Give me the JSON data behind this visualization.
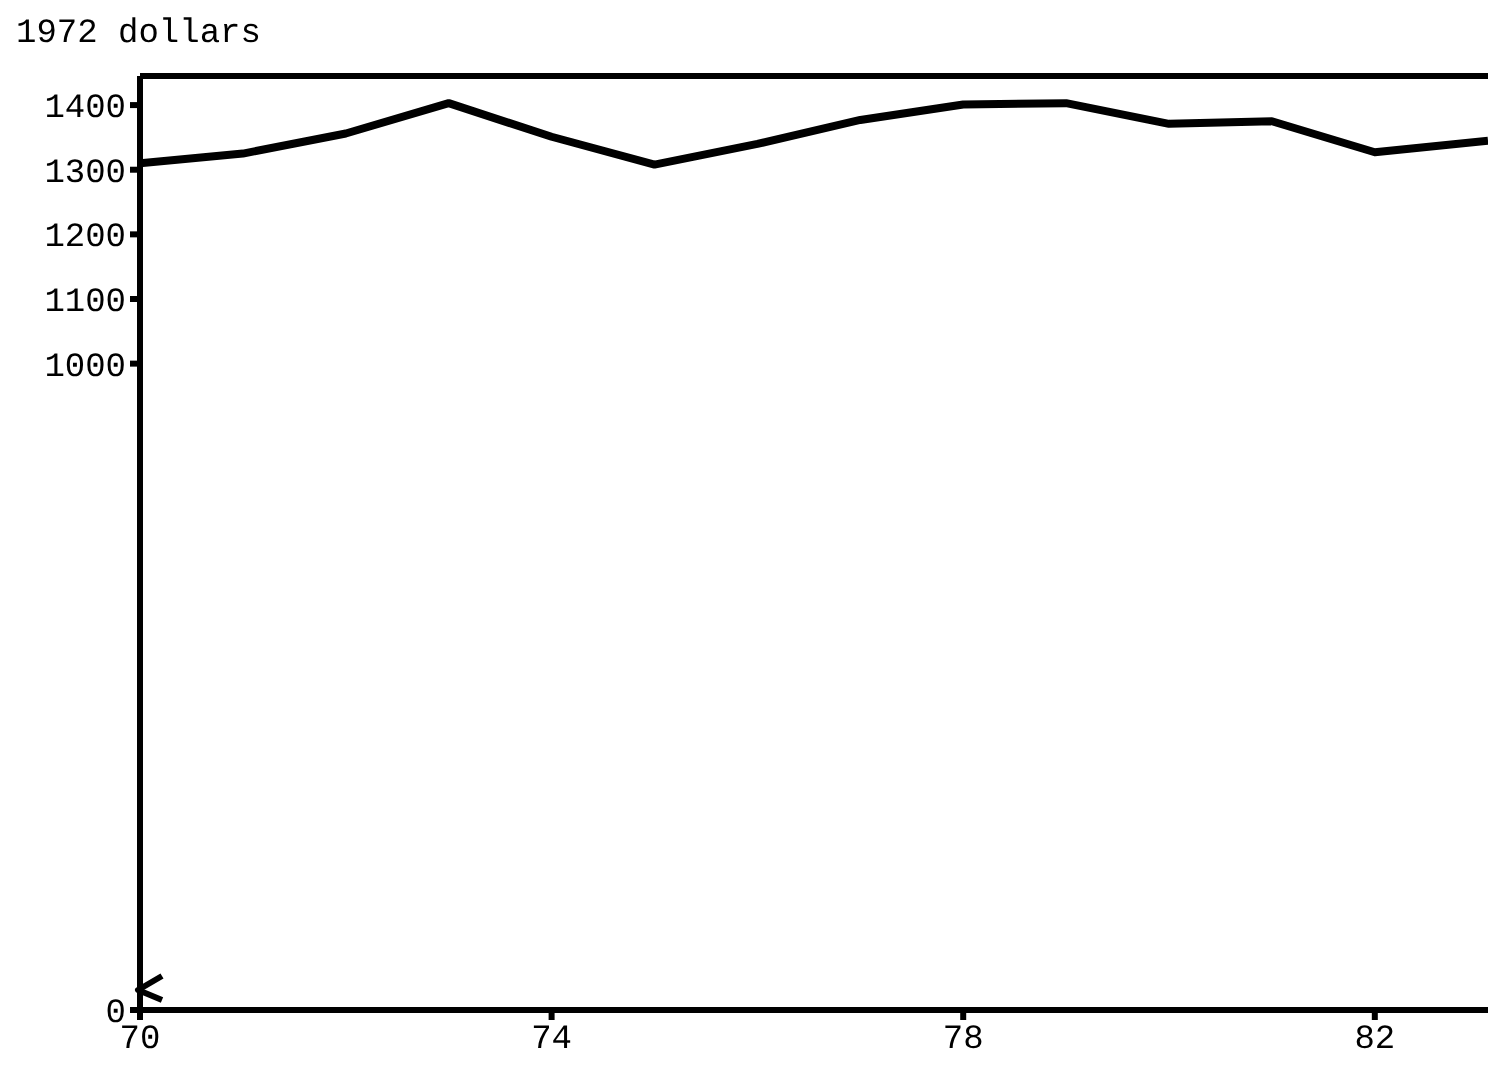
{
  "chart_data": {
    "type": "line",
    "ylabel": "1972 dollars",
    "x": [
      70,
      71,
      72,
      73,
      74,
      75,
      76,
      77,
      78,
      79,
      80,
      81,
      82,
      83.1
    ],
    "series": [
      {
        "color": "#000000",
        "values": [
          1310,
          1325,
          1356,
          1403,
          1351,
          1308,
          1340,
          1377,
          1401,
          1403,
          1371,
          1375,
          1327,
          1345
        ]
      }
    ],
    "xlim": [
      70,
      83.1
    ],
    "xticks": [
      70,
      74,
      78,
      82
    ],
    "ylim": [
      0,
      1445
    ],
    "yticks": [
      0,
      1000,
      1100,
      1200,
      1300,
      1400
    ],
    "grid": false,
    "legend": false,
    "marker": "none",
    "line_style": "solid"
  }
}
